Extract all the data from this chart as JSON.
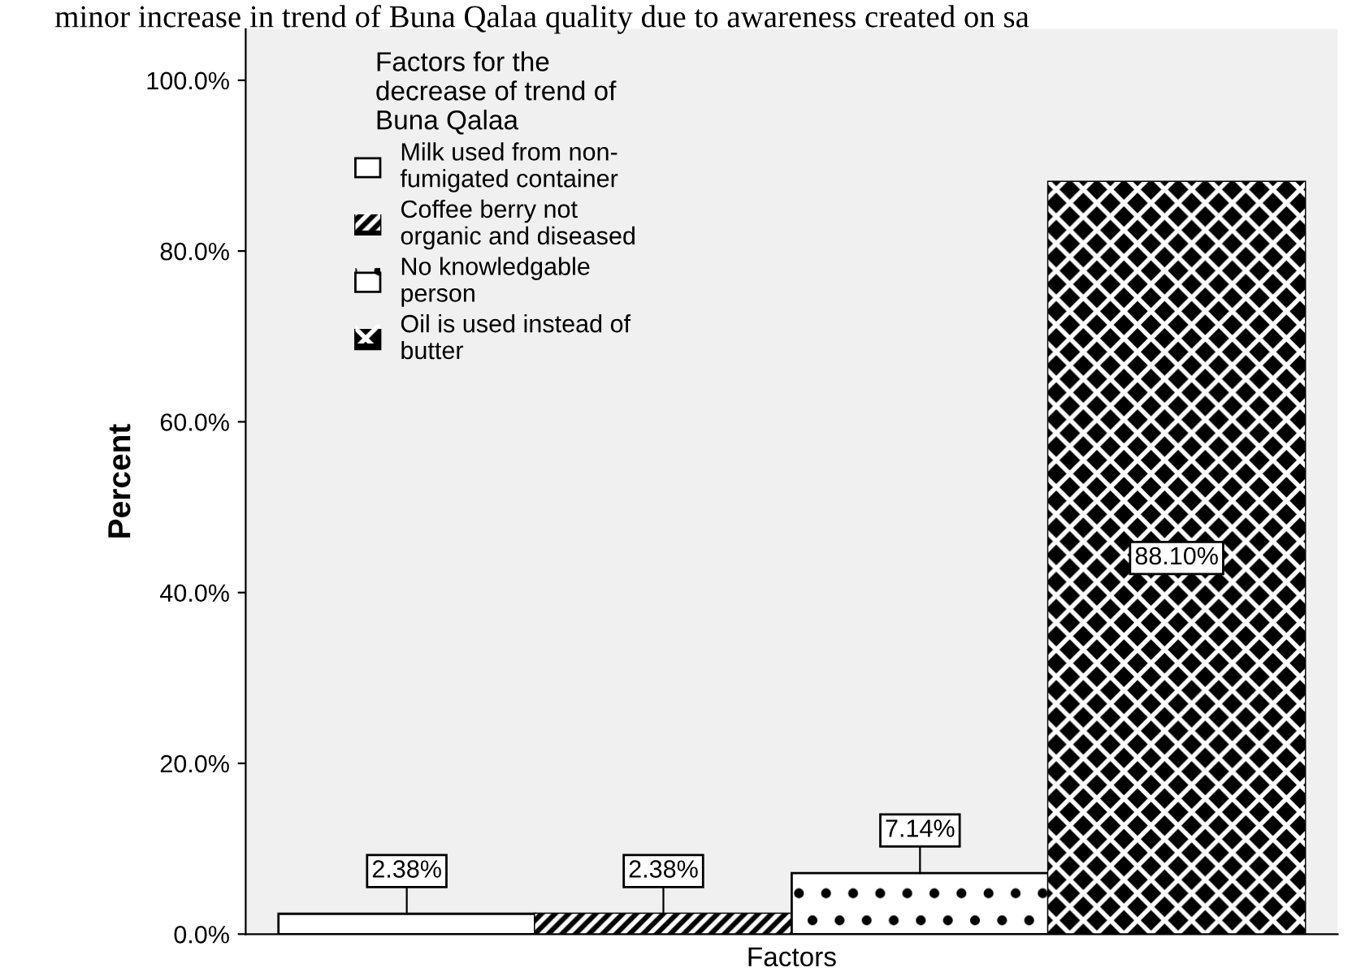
{
  "chart_data": {
    "type": "bar",
    "categories": [
      null
    ],
    "xlabel": "Factors",
    "ylabel": "Percent",
    "legend_title": "Factors for the\ndecrease of trend of\nBuna Qalaa",
    "legend": "top left",
    "annotations": [
      "minor increase in trend of Buna Qalaa quality due to awareness created on sa"
    ],
    "series": [
      {
        "name": "Milk used from non-\nfumigated container",
        "color": "#ffffff",
        "values": [
          2.38
        ],
        "value_labels": [
          "2.38%"
        ]
      },
      {
        "name": "Coffee berry not\norganic and diseased",
        "color": "#000000",
        "values": [
          2.38
        ],
        "value_labels": [
          "2.38%"
        ]
      },
      {
        "name": "No knowledgable\nperson",
        "color": "#ffffff",
        "values": [
          7.14
        ],
        "value_labels": [
          "7.14%"
        ]
      },
      {
        "name": "Oil is used instead of\nbutter",
        "color": "#000000",
        "values": [
          88.1
        ],
        "value_labels": [
          "88.10%"
        ]
      }
    ],
    "ylim": [
      0,
      106
    ],
    "yticks": [
      {
        "value": 0,
        "label": "0.0%"
      },
      {
        "value": 20,
        "label": "20.0%"
      },
      {
        "value": 40,
        "label": "40.0%"
      },
      {
        "value": 60,
        "label": "60.0%"
      },
      {
        "value": 80,
        "label": "80.0%"
      },
      {
        "value": 100,
        "label": "100.0%"
      }
    ],
    "grid": false
  }
}
